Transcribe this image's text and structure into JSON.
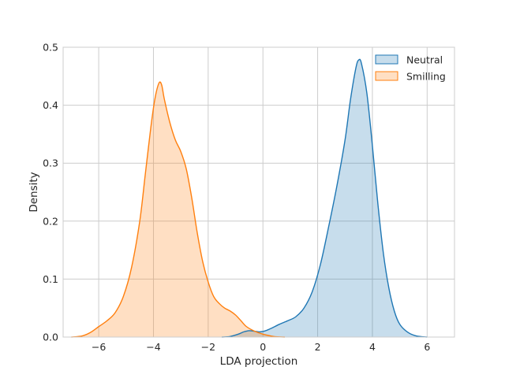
{
  "chart_data": {
    "type": "area",
    "title": "",
    "xlabel": "LDA projection",
    "ylabel": "Density",
    "xlim": [
      -7.3,
      7.0
    ],
    "ylim": [
      0,
      0.5
    ],
    "grid": true,
    "legend_position": "top-right",
    "x_ticks": [
      -6,
      -4,
      -2,
      0,
      2,
      4,
      6
    ],
    "x_tick_labels": [
      "−6",
      "−4",
      "−2",
      "0",
      "2",
      "4",
      "6"
    ],
    "y_ticks": [
      0.0,
      0.1,
      0.2,
      0.3,
      0.4,
      0.5
    ],
    "y_tick_labels": [
      "0.0",
      "0.1",
      "0.2",
      "0.3",
      "0.4",
      "0.5"
    ],
    "series": [
      {
        "name": "Neutral",
        "line_color": "#1f77b4",
        "fill_color": "#1f77b4",
        "fill_opacity": 0.25,
        "points": [
          [
            -1.5,
            0.0
          ],
          [
            -1.2,
            0.001
          ],
          [
            -0.9,
            0.005
          ],
          [
            -0.7,
            0.009
          ],
          [
            -0.5,
            0.011
          ],
          [
            -0.3,
            0.01
          ],
          [
            -0.1,
            0.009
          ],
          [
            0.1,
            0.011
          ],
          [
            0.3,
            0.015
          ],
          [
            0.6,
            0.022
          ],
          [
            0.9,
            0.028
          ],
          [
            1.2,
            0.035
          ],
          [
            1.5,
            0.05
          ],
          [
            1.8,
            0.078
          ],
          [
            2.1,
            0.125
          ],
          [
            2.4,
            0.19
          ],
          [
            2.7,
            0.26
          ],
          [
            3.0,
            0.34
          ],
          [
            3.2,
            0.41
          ],
          [
            3.4,
            0.465
          ],
          [
            3.5,
            0.478
          ],
          [
            3.6,
            0.472
          ],
          [
            3.8,
            0.42
          ],
          [
            4.0,
            0.33
          ],
          [
            4.2,
            0.23
          ],
          [
            4.4,
            0.145
          ],
          [
            4.6,
            0.085
          ],
          [
            4.8,
            0.045
          ],
          [
            5.0,
            0.022
          ],
          [
            5.3,
            0.008
          ],
          [
            5.6,
            0.002
          ],
          [
            6.0,
            0.0
          ]
        ]
      },
      {
        "name": "Smilling",
        "line_color": "#ff7f0e",
        "fill_color": "#ff7f0e",
        "fill_opacity": 0.25,
        "points": [
          [
            -7.0,
            0.0
          ],
          [
            -6.6,
            0.002
          ],
          [
            -6.3,
            0.008
          ],
          [
            -6.0,
            0.018
          ],
          [
            -5.7,
            0.028
          ],
          [
            -5.4,
            0.042
          ],
          [
            -5.1,
            0.07
          ],
          [
            -4.8,
            0.12
          ],
          [
            -4.5,
            0.2
          ],
          [
            -4.3,
            0.28
          ],
          [
            -4.1,
            0.36
          ],
          [
            -3.95,
            0.41
          ],
          [
            -3.8,
            0.438
          ],
          [
            -3.7,
            0.435
          ],
          [
            -3.6,
            0.41
          ],
          [
            -3.4,
            0.37
          ],
          [
            -3.2,
            0.34
          ],
          [
            -3.0,
            0.32
          ],
          [
            -2.8,
            0.29
          ],
          [
            -2.6,
            0.24
          ],
          [
            -2.4,
            0.18
          ],
          [
            -2.2,
            0.13
          ],
          [
            -2.0,
            0.095
          ],
          [
            -1.8,
            0.07
          ],
          [
            -1.6,
            0.058
          ],
          [
            -1.4,
            0.05
          ],
          [
            -1.2,
            0.045
          ],
          [
            -1.0,
            0.038
          ],
          [
            -0.8,
            0.028
          ],
          [
            -0.6,
            0.018
          ],
          [
            -0.3,
            0.01
          ],
          [
            0.0,
            0.005
          ],
          [
            0.4,
            0.001
          ],
          [
            0.8,
            0.0
          ]
        ]
      }
    ]
  }
}
